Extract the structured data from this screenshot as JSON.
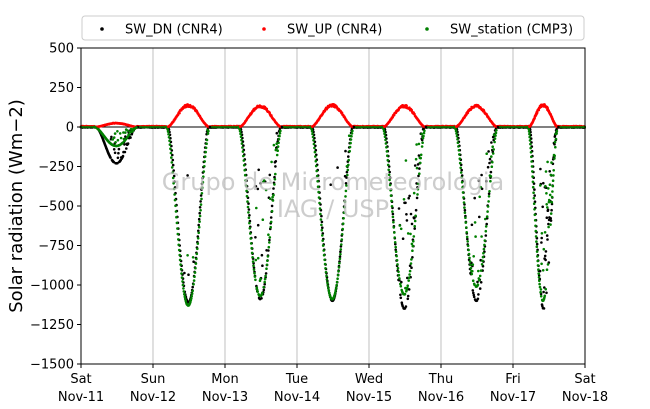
{
  "chart_data": {
    "type": "scatter",
    "title": "",
    "ylabel": "Solar radiation (Wm−2)",
    "xlabel": "",
    "ylim": [
      -1500,
      500
    ],
    "yticks": [
      500,
      250,
      0,
      -250,
      -500,
      -750,
      -1000,
      -1250,
      -1500
    ],
    "ytick_labels": [
      "500",
      "250",
      "0",
      "−250",
      "−500",
      "−750",
      "−1000",
      "−1250",
      "−1500"
    ],
    "xlim": [
      0,
      7
    ],
    "xticks": [
      {
        "day": "Sat",
        "date": "Nov-11"
      },
      {
        "day": "Sun",
        "date": "Nov-12"
      },
      {
        "day": "Mon",
        "date": "Nov-13"
      },
      {
        "day": "Tue",
        "date": "Nov-14"
      },
      {
        "day": "Wed",
        "date": "Nov-15"
      },
      {
        "day": "Thu",
        "date": "Nov-16"
      },
      {
        "day": "Fri",
        "date": "Nov-17"
      },
      {
        "day": "Sat",
        "date": "Nov-18"
      }
    ],
    "grid": "vertical",
    "legend_position": "top",
    "watermark": [
      "Grupo de Micrometeorologia",
      "IAG / USP"
    ],
    "days": [
      {
        "start": 0.2,
        "end": 0.78,
        "peak_dn": -230,
        "peak_up": 25,
        "peak_station": -120,
        "noisy": 0.6
      },
      {
        "start": 1.2,
        "end": 1.78,
        "peak_dn": -1110,
        "peak_up": 140,
        "peak_station": -1130,
        "noisy": 0.05
      },
      {
        "start": 2.2,
        "end": 2.78,
        "peak_dn": -1090,
        "peak_up": 135,
        "peak_station": -1070,
        "noisy": 0.35
      },
      {
        "start": 3.2,
        "end": 3.78,
        "peak_dn": -1100,
        "peak_up": 140,
        "peak_station": -1090,
        "noisy": 0.08
      },
      {
        "start": 4.2,
        "end": 4.78,
        "peak_dn": -1150,
        "peak_up": 135,
        "peak_station": -1060,
        "noisy": 0.55
      },
      {
        "start": 5.2,
        "end": 5.78,
        "peak_dn": -1100,
        "peak_up": 135,
        "peak_station": -1010,
        "noisy": 0.55
      },
      {
        "start": 6.22,
        "end": 6.62,
        "peak_dn": -1150,
        "peak_up": 140,
        "peak_station": -1100,
        "noisy": 0.8
      }
    ],
    "series": [
      {
        "name": "SW_DN (CNR4)",
        "color": "#000000",
        "values": "down"
      },
      {
        "name": "SW_UP (CNR4)",
        "color": "#ff0000",
        "values": "up"
      },
      {
        "name": "SW_station (CMP3)",
        "color": "#008000",
        "values": "down"
      }
    ]
  }
}
